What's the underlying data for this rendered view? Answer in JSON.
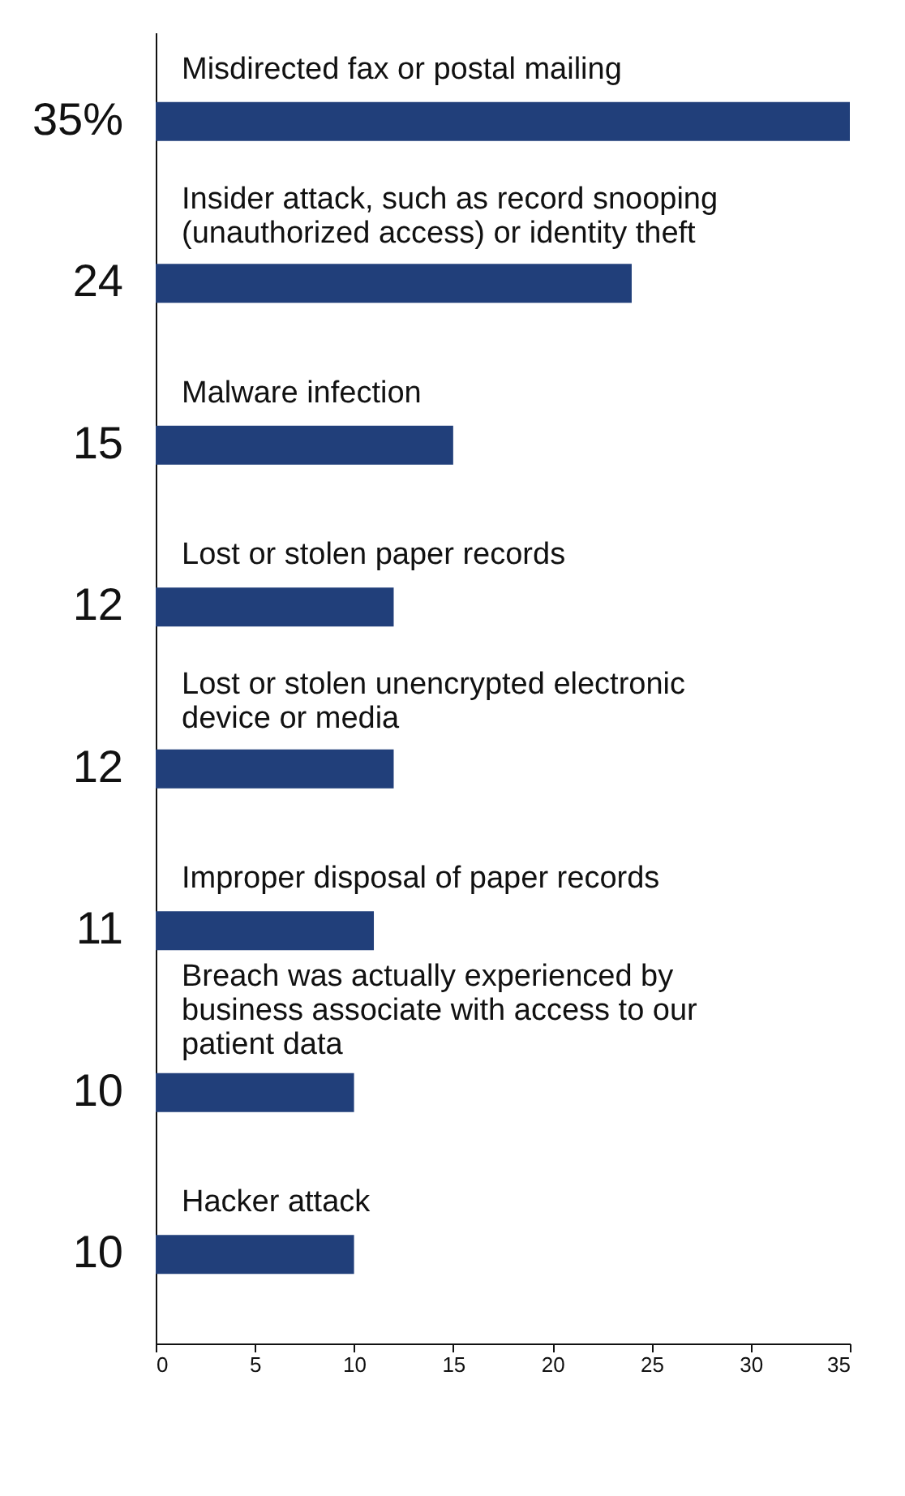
{
  "chart_data": {
    "type": "bar",
    "orientation": "horizontal",
    "categories": [
      "Misdirected fax or postal mailing",
      "Insider attack, such as record snooping (unauthorized access) or identity theft",
      "Malware infection",
      "Lost or stolen paper records",
      "Lost or stolen unencrypted electronic device or media",
      "Improper disposal of paper records",
      "Breach was actually experienced by business associate with access to our patient data",
      "Hacker attack"
    ],
    "values": [
      35,
      24,
      15,
      12,
      12,
      11,
      10,
      10
    ],
    "value_labels": [
      "35%",
      "24",
      "15",
      "12",
      "12",
      "11",
      "10",
      "10"
    ],
    "color": "#213f7a",
    "xlim": [
      0,
      35
    ],
    "xticks": [
      0,
      5,
      10,
      15,
      20,
      25,
      30,
      35
    ],
    "grid": false
  }
}
